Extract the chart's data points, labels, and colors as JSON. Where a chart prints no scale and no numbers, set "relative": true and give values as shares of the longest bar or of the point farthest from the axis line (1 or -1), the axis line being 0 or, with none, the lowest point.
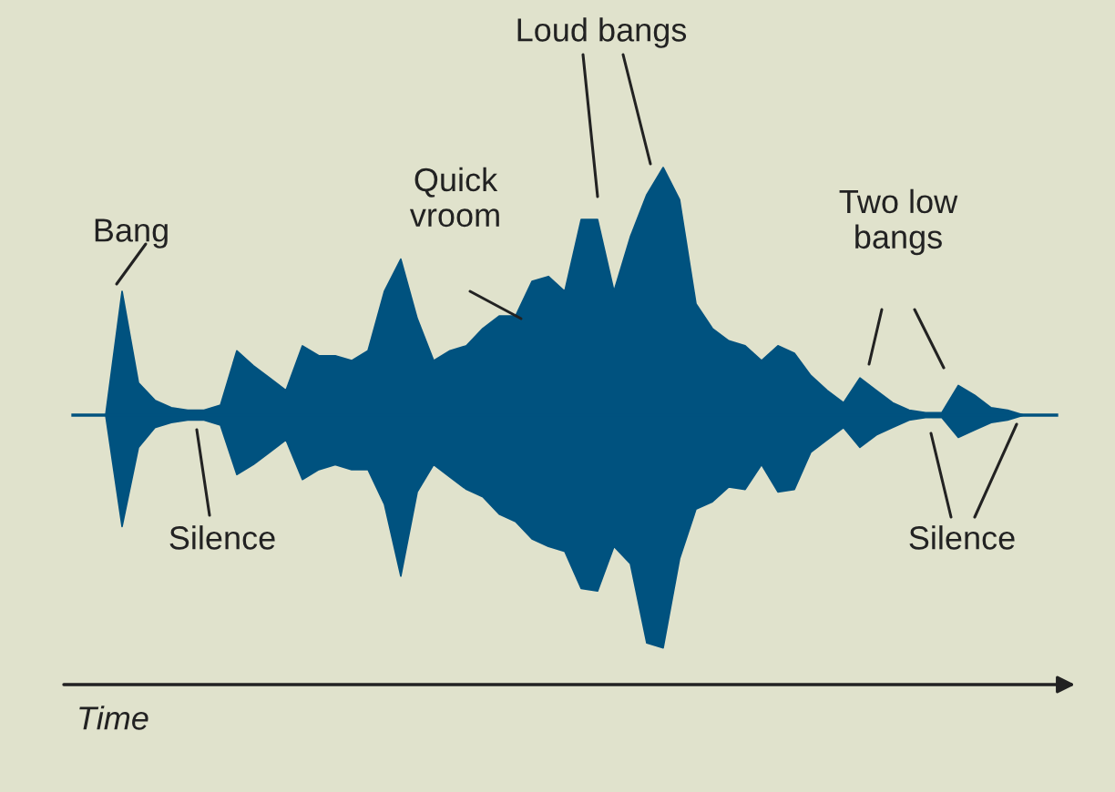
{
  "chart_data": {
    "type": "area",
    "relative": true,
    "xlabel": "Time",
    "categories": [
      null,
      null,
      null,
      null,
      null,
      null,
      null,
      null,
      null,
      null,
      null,
      null,
      null,
      null,
      null,
      null,
      null,
      null,
      null,
      null,
      null,
      null,
      null,
      null,
      null,
      null,
      null,
      null,
      null,
      null,
      null,
      null,
      null,
      null,
      null,
      null,
      null,
      null,
      null,
      null,
      null,
      null,
      null,
      null,
      null,
      null,
      null,
      null,
      null,
      null,
      null,
      null,
      null,
      null,
      null,
      null,
      null,
      null,
      null,
      null,
      null
    ],
    "series": [
      {
        "color": "#00527f",
        "values": [
          0,
          0,
          0,
          0.5,
          0.13,
          0.06,
          0.03,
          0.02,
          0.02,
          0.04,
          0.26,
          0.2,
          0.15,
          0.1,
          0.28,
          0.24,
          0.24,
          0.22,
          0.26,
          0.5,
          0.63,
          0.39,
          0.22,
          0.26,
          0.28,
          0.35,
          0.4,
          0.4,
          0.54,
          0.56,
          0.5,
          0.79,
          0.79,
          0.5,
          0.72,
          0.89,
          1,
          0.87,
          0.45,
          0.35,
          0.3,
          0.28,
          0.22,
          0.28,
          0.25,
          0.16,
          0.1,
          0.05,
          0.15,
          0.1,
          0.05,
          0.02,
          0.01,
          0.01,
          0.12,
          0.08,
          0.03,
          0.02,
          0,
          0,
          0
        ]
      },
      {
        "color": "#00527f",
        "values": [
          0,
          0,
          0,
          -0.45,
          -0.13,
          -0.05,
          -0.03,
          -0.02,
          -0.02,
          -0.04,
          -0.24,
          -0.2,
          -0.15,
          -0.1,
          -0.26,
          -0.22,
          -0.2,
          -0.22,
          -0.22,
          -0.36,
          -0.65,
          -0.31,
          -0.2,
          -0.25,
          -0.3,
          -0.33,
          -0.4,
          -0.43,
          -0.5,
          -0.53,
          -0.55,
          -0.7,
          -0.71,
          -0.53,
          -0.6,
          -0.92,
          -0.94,
          -0.58,
          -0.38,
          -0.35,
          -0.29,
          -0.3,
          -0.2,
          -0.31,
          -0.3,
          -0.15,
          -0.1,
          -0.05,
          -0.13,
          -0.08,
          -0.05,
          -0.02,
          -0.01,
          -0.01,
          -0.09,
          -0.06,
          -0.03,
          -0.02,
          0,
          0,
          0
        ]
      }
    ],
    "annotations": [
      "Bang",
      "Quick\nvroom",
      "Loud bangs",
      "Two low\nbangs",
      "Silence",
      "Silence"
    ]
  }
}
